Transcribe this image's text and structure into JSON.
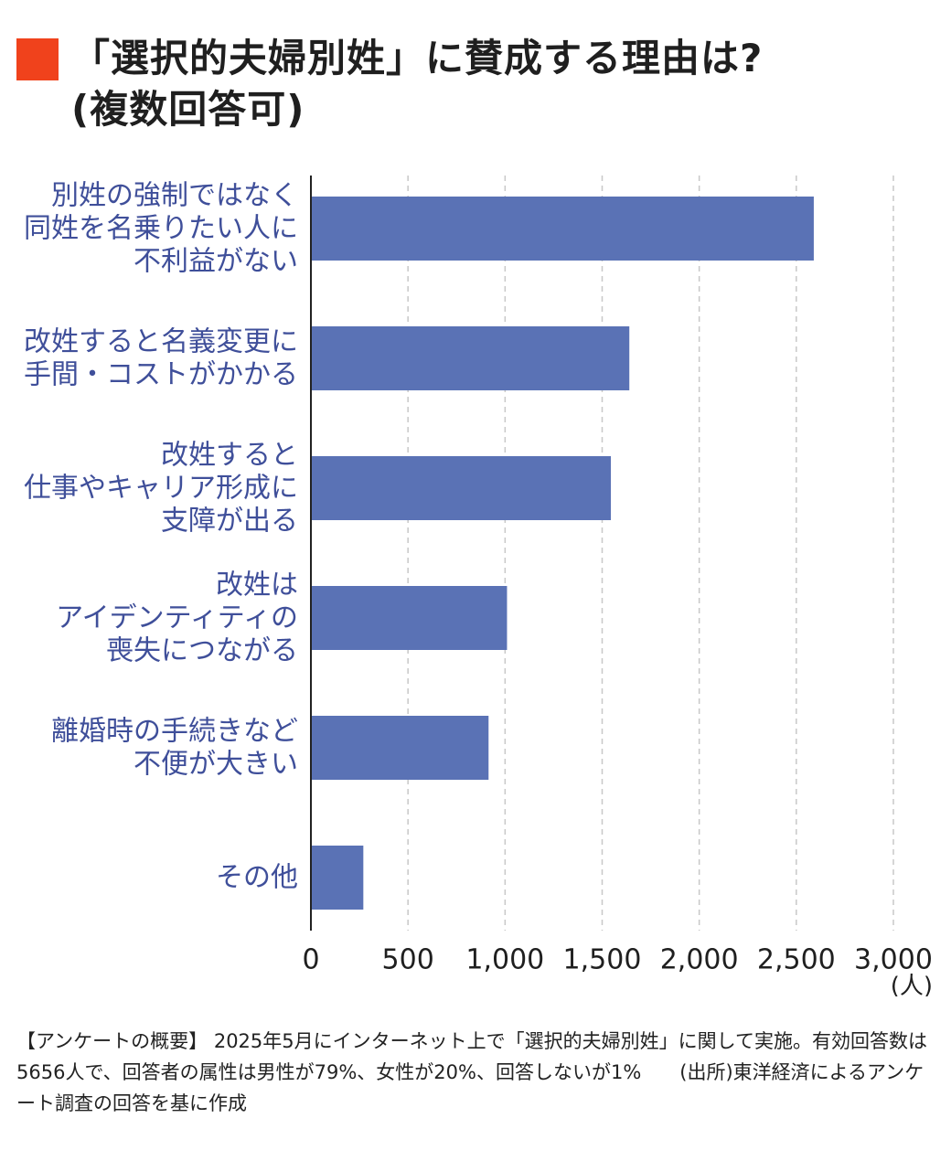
{
  "title": {
    "line1": "「選択的夫婦別姓」に賛成する理由は?",
    "line2": "(複数回答可)"
  },
  "colors": {
    "title_square": "#f0421c",
    "bar": "#5a72b5",
    "label_text": "#3f4f9a",
    "grid": "#c8c8c8",
    "axis": "#222222"
  },
  "chart_data": {
    "type": "bar",
    "orientation": "horizontal",
    "categories": [
      [
        "別姓の強制ではなく",
        "同姓を名乗りたい人に",
        "不利益がない"
      ],
      [
        "改姓すると名義変更に",
        "手間・コストがかかる"
      ],
      [
        "改姓すると",
        "仕事やキャリア形成に",
        "支障が出る"
      ],
      [
        "改姓は",
        "アイデンティティの",
        "喪失につながる"
      ],
      [
        "離婚時の手続きなど",
        "不便が大きい"
      ],
      [
        "その他"
      ]
    ],
    "values": [
      2590,
      1640,
      1545,
      1010,
      915,
      270
    ],
    "xlim": [
      0,
      3000
    ],
    "xticks": [
      0,
      500,
      1000,
      1500,
      2000,
      2500,
      3000
    ],
    "xtick_labels": [
      "0",
      "500",
      "1,000",
      "1,500",
      "2,000",
      "2,500",
      "3,000"
    ],
    "unit": "(人)",
    "grid": "vertical dashed",
    "legend": "none"
  },
  "footnote": "【アンケートの概要】 2025年5月にインターネット上で「選択的夫婦別姓」に関して実施。有効回答数は5656人で、回答者の属性は男性が79%、女性が20%、回答しないが1%　　(出所)東洋経済によるアンケート調査の回答を基に作成"
}
